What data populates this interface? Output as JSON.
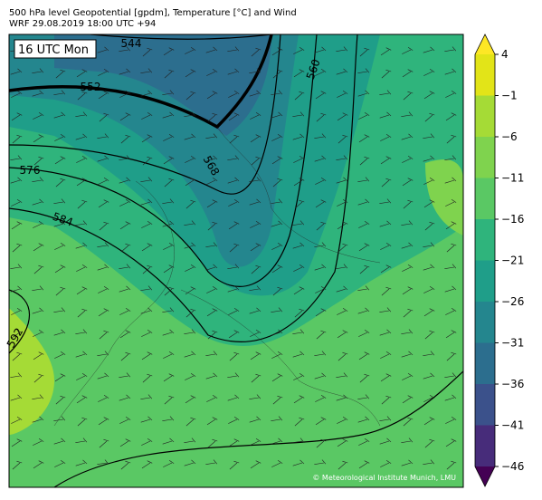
{
  "header": {
    "title": "500 hPa level Geopotential [gpdm], Temperature [°C] and Wind",
    "subtitle": "WRF 29.08.2019 18:00 UTC +94"
  },
  "map": {
    "time_label": "16 UTC Mon",
    "contour_labels": [
      544,
      552,
      560,
      568,
      576,
      584,
      592
    ],
    "credit": "© Meteorological Institute Munich, LMU"
  },
  "colorbar": {
    "ticks": [
      {
        "value": -46,
        "label": "−46"
      },
      {
        "value": -41,
        "label": "−41"
      },
      {
        "value": -36,
        "label": "−36"
      },
      {
        "value": -31,
        "label": "−31"
      },
      {
        "value": -26,
        "label": "−26"
      },
      {
        "value": -21,
        "label": "−21"
      },
      {
        "value": -16,
        "label": "−16"
      },
      {
        "value": -11,
        "label": "−11"
      },
      {
        "value": -6,
        "label": "−6"
      },
      {
        "value": -1,
        "label": "−1"
      },
      4
    ],
    "colors": [
      "#472c7a",
      "#3b518b",
      "#2c6e8e",
      "#24868e",
      "#1f9e89",
      "#2fb47c",
      "#5ac864",
      "#7fd34e",
      "#a5db36",
      "#e2e418"
    ],
    "under_color": "#440154",
    "over_color": "#fde725"
  }
}
